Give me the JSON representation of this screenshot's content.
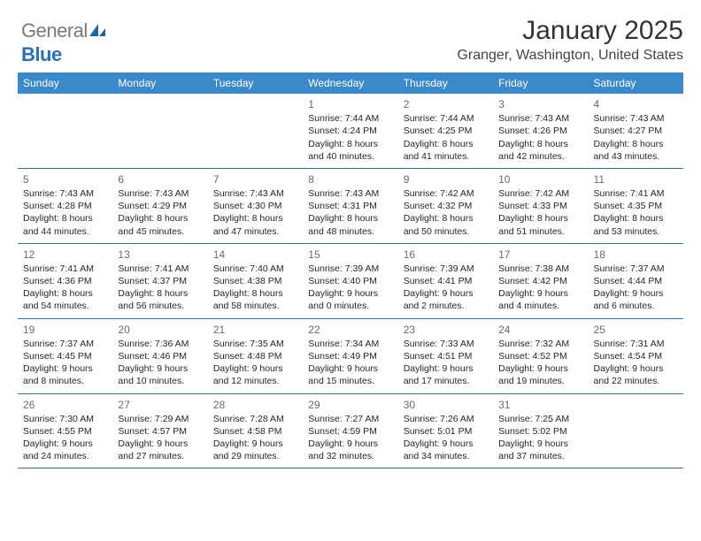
{
  "brand": {
    "name_a": "General",
    "name_b": "Blue"
  },
  "title": "January 2025",
  "location": "Granger, Washington, United States",
  "colors": {
    "header_bg": "#3b89c9",
    "header_text": "#ffffff",
    "divider": "#3b6fa0",
    "daynum": "#6b6b6b",
    "body_text": "#262626",
    "logo_gray": "#7a7a7a",
    "logo_blue": "#2c6fb5"
  },
  "day_names": [
    "Sunday",
    "Monday",
    "Tuesday",
    "Wednesday",
    "Thursday",
    "Friday",
    "Saturday"
  ],
  "weeks": [
    [
      {
        "empty": true
      },
      {
        "empty": true
      },
      {
        "empty": true
      },
      {
        "n": "1",
        "sr": "7:44 AM",
        "ss": "4:24 PM",
        "dh": "8",
        "dm": "40"
      },
      {
        "n": "2",
        "sr": "7:44 AM",
        "ss": "4:25 PM",
        "dh": "8",
        "dm": "41"
      },
      {
        "n": "3",
        "sr": "7:43 AM",
        "ss": "4:26 PM",
        "dh": "8",
        "dm": "42"
      },
      {
        "n": "4",
        "sr": "7:43 AM",
        "ss": "4:27 PM",
        "dh": "8",
        "dm": "43"
      }
    ],
    [
      {
        "n": "5",
        "sr": "7:43 AM",
        "ss": "4:28 PM",
        "dh": "8",
        "dm": "44"
      },
      {
        "n": "6",
        "sr": "7:43 AM",
        "ss": "4:29 PM",
        "dh": "8",
        "dm": "45"
      },
      {
        "n": "7",
        "sr": "7:43 AM",
        "ss": "4:30 PM",
        "dh": "8",
        "dm": "47"
      },
      {
        "n": "8",
        "sr": "7:43 AM",
        "ss": "4:31 PM",
        "dh": "8",
        "dm": "48"
      },
      {
        "n": "9",
        "sr": "7:42 AM",
        "ss": "4:32 PM",
        "dh": "8",
        "dm": "50"
      },
      {
        "n": "10",
        "sr": "7:42 AM",
        "ss": "4:33 PM",
        "dh": "8",
        "dm": "51"
      },
      {
        "n": "11",
        "sr": "7:41 AM",
        "ss": "4:35 PM",
        "dh": "8",
        "dm": "53"
      }
    ],
    [
      {
        "n": "12",
        "sr": "7:41 AM",
        "ss": "4:36 PM",
        "dh": "8",
        "dm": "54"
      },
      {
        "n": "13",
        "sr": "7:41 AM",
        "ss": "4:37 PM",
        "dh": "8",
        "dm": "56"
      },
      {
        "n": "14",
        "sr": "7:40 AM",
        "ss": "4:38 PM",
        "dh": "8",
        "dm": "58"
      },
      {
        "n": "15",
        "sr": "7:39 AM",
        "ss": "4:40 PM",
        "dh": "9",
        "dm": "0"
      },
      {
        "n": "16",
        "sr": "7:39 AM",
        "ss": "4:41 PM",
        "dh": "9",
        "dm": "2"
      },
      {
        "n": "17",
        "sr": "7:38 AM",
        "ss": "4:42 PM",
        "dh": "9",
        "dm": "4"
      },
      {
        "n": "18",
        "sr": "7:37 AM",
        "ss": "4:44 PM",
        "dh": "9",
        "dm": "6"
      }
    ],
    [
      {
        "n": "19",
        "sr": "7:37 AM",
        "ss": "4:45 PM",
        "dh": "9",
        "dm": "8"
      },
      {
        "n": "20",
        "sr": "7:36 AM",
        "ss": "4:46 PM",
        "dh": "9",
        "dm": "10"
      },
      {
        "n": "21",
        "sr": "7:35 AM",
        "ss": "4:48 PM",
        "dh": "9",
        "dm": "12"
      },
      {
        "n": "22",
        "sr": "7:34 AM",
        "ss": "4:49 PM",
        "dh": "9",
        "dm": "15"
      },
      {
        "n": "23",
        "sr": "7:33 AM",
        "ss": "4:51 PM",
        "dh": "9",
        "dm": "17"
      },
      {
        "n": "24",
        "sr": "7:32 AM",
        "ss": "4:52 PM",
        "dh": "9",
        "dm": "19"
      },
      {
        "n": "25",
        "sr": "7:31 AM",
        "ss": "4:54 PM",
        "dh": "9",
        "dm": "22"
      }
    ],
    [
      {
        "n": "26",
        "sr": "7:30 AM",
        "ss": "4:55 PM",
        "dh": "9",
        "dm": "24"
      },
      {
        "n": "27",
        "sr": "7:29 AM",
        "ss": "4:57 PM",
        "dh": "9",
        "dm": "27"
      },
      {
        "n": "28",
        "sr": "7:28 AM",
        "ss": "4:58 PM",
        "dh": "9",
        "dm": "29"
      },
      {
        "n": "29",
        "sr": "7:27 AM",
        "ss": "4:59 PM",
        "dh": "9",
        "dm": "32"
      },
      {
        "n": "30",
        "sr": "7:26 AM",
        "ss": "5:01 PM",
        "dh": "9",
        "dm": "34"
      },
      {
        "n": "31",
        "sr": "7:25 AM",
        "ss": "5:02 PM",
        "dh": "9",
        "dm": "37"
      },
      {
        "empty": true
      }
    ]
  ],
  "labels": {
    "sunrise": "Sunrise:",
    "sunset": "Sunset:",
    "daylight": "Daylight:",
    "hours": "hours",
    "and": "and",
    "minutes": "minutes."
  }
}
